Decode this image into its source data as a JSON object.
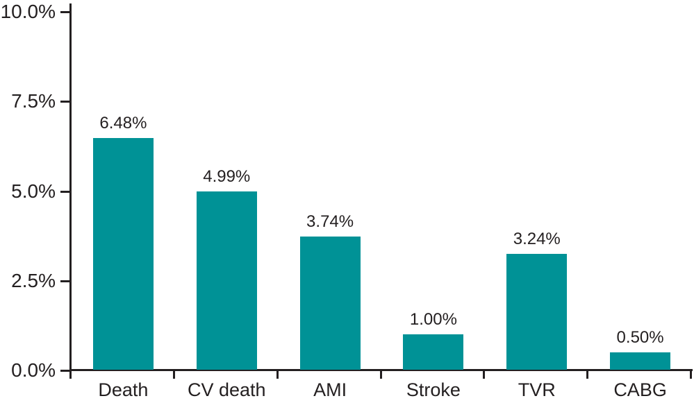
{
  "chart_data": {
    "type": "bar",
    "title": "",
    "xlabel": "",
    "ylabel": "",
    "categories": [
      "Death",
      "CV death",
      "AMI",
      "Stroke",
      "TVR",
      "CABG"
    ],
    "values": [
      6.48,
      4.99,
      3.74,
      1.0,
      3.24,
      0.5
    ],
    "value_labels": [
      "6.48%",
      "4.99%",
      "3.74%",
      "1.00%",
      "3.24%",
      "0.50%"
    ],
    "ylim": [
      0,
      10
    ],
    "y_ticks": [
      {
        "value": 10.0,
        "label": "10.0%"
      },
      {
        "value": 7.5,
        "label": "7.5%"
      },
      {
        "value": 5.0,
        "label": "5.0%"
      },
      {
        "value": 2.5,
        "label": "2.5%"
      },
      {
        "value": 0.0,
        "label": "0.0%"
      }
    ],
    "grid": false,
    "legend": null,
    "colors": {
      "bar": "#009296",
      "axis": "#231f20",
      "text": "#231f20",
      "background": "#ffffff"
    }
  }
}
